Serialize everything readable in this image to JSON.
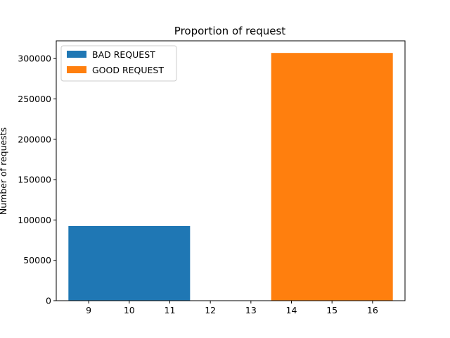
{
  "chart_data": {
    "type": "bar",
    "title": "Proportion of request",
    "xlabel": "",
    "ylabel": "Number of requests",
    "xlim": [
      8.2,
      16.8
    ],
    "ylim": [
      0,
      322000
    ],
    "x_ticks": [
      9,
      10,
      11,
      12,
      13,
      14,
      15,
      16
    ],
    "y_ticks": [
      0,
      50000,
      100000,
      150000,
      200000,
      250000,
      300000
    ],
    "grid": false,
    "legend_position": "top-left",
    "series": [
      {
        "name": "BAD REQUEST",
        "color": "#1f77b4",
        "x_start": 8.5,
        "x_end": 11.5,
        "value": 92500
      },
      {
        "name": "GOOD REQUEST",
        "color": "#ff7f0e",
        "x_start": 13.5,
        "x_end": 16.5,
        "value": 307000
      }
    ]
  }
}
